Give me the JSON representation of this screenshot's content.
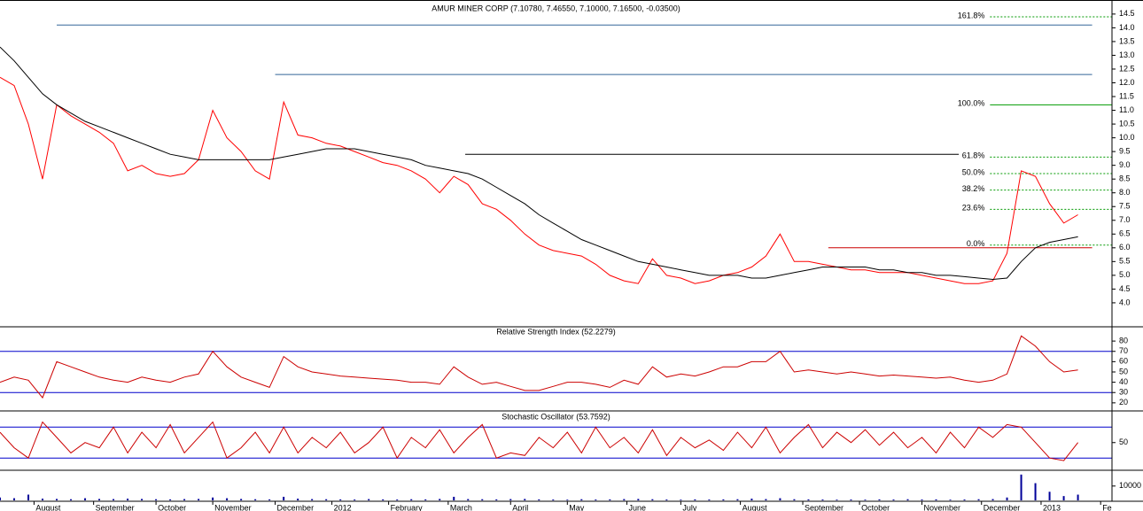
{
  "chart_data": [
    {
      "type": "line",
      "title": "AMUR MINER CORP (7.10780, 7.46550, 7.10000, 7.16500, -0.03500)",
      "x": [
        0,
        5,
        10,
        15,
        20,
        25,
        30,
        35,
        40,
        45,
        50,
        55,
        60,
        65,
        70,
        75,
        80,
        85,
        90,
        95,
        100,
        105,
        110,
        115,
        120,
        125,
        130,
        135,
        140,
        145,
        150,
        155,
        160,
        165,
        170,
        175,
        180,
        185,
        190,
        195,
        200,
        205,
        210,
        215,
        220,
        225,
        230,
        235,
        240,
        245,
        250,
        255,
        260,
        265,
        270,
        275,
        280,
        285,
        290,
        295,
        300,
        305,
        310,
        315,
        320,
        325,
        330,
        335,
        340,
        345,
        350,
        355,
        360,
        365,
        370,
        375,
        380
      ],
      "xlim": [
        0,
        392
      ],
      "ylim": [
        3.16,
        14.85
      ],
      "yticks": [
        {
          "value": 4,
          "label": "4.0"
        },
        4.5,
        {
          "value": 5,
          "label": "5.0"
        },
        5.5,
        {
          "value": 6,
          "label": "6.0"
        },
        6.5,
        {
          "value": 7,
          "label": "7.0"
        },
        7.5,
        {
          "value": 8,
          "label": "8.0"
        },
        8.5,
        {
          "value": 9,
          "label": "9.0"
        },
        9.5,
        {
          "value": 10,
          "label": "10.0"
        },
        10.5,
        {
          "value": 11,
          "label": "11.0"
        },
        11.5,
        {
          "value": 12,
          "label": "12.0"
        },
        12.5,
        {
          "value": 13,
          "label": "13.0"
        },
        13.5,
        {
          "value": 14,
          "label": "14.0"
        },
        14.5
      ],
      "series": [
        {
          "name": "price",
          "color": "#ff0000",
          "values": [
            12.2,
            11.9,
            10.5,
            8.5,
            11.2,
            10.8,
            10.5,
            10.2,
            9.8,
            8.8,
            9.0,
            8.7,
            8.6,
            8.7,
            9.2,
            11.0,
            10.0,
            9.5,
            8.8,
            8.5,
            11.3,
            10.1,
            10.0,
            9.8,
            9.7,
            9.5,
            9.3,
            9.1,
            9.0,
            8.8,
            8.5,
            8.0,
            8.6,
            8.3,
            7.6,
            7.4,
            7.0,
            6.5,
            6.1,
            5.9,
            5.8,
            5.7,
            5.4,
            5.0,
            4.8,
            4.7,
            5.6,
            5.0,
            4.9,
            4.7,
            4.8,
            5.0,
            5.1,
            5.3,
            5.7,
            6.5,
            5.5,
            5.5,
            5.4,
            5.3,
            5.2,
            5.2,
            5.1,
            5.1,
            5.1,
            5.0,
            4.9,
            4.8,
            4.7,
            4.7,
            4.8,
            5.8,
            8.8,
            8.6,
            7.6,
            6.9,
            7.2
          ]
        },
        {
          "name": "moving-average",
          "color": "#000000",
          "values": [
            13.3,
            12.8,
            12.2,
            11.6,
            11.2,
            10.9,
            10.6,
            10.4,
            10.2,
            10.0,
            9.8,
            9.6,
            9.4,
            9.3,
            9.2,
            9.2,
            9.2,
            9.2,
            9.2,
            9.2,
            9.3,
            9.4,
            9.5,
            9.6,
            9.6,
            9.6,
            9.5,
            9.4,
            9.3,
            9.2,
            9.0,
            8.9,
            8.8,
            8.7,
            8.5,
            8.2,
            7.9,
            7.6,
            7.2,
            6.9,
            6.6,
            6.3,
            6.1,
            5.9,
            5.7,
            5.5,
            5.4,
            5.3,
            5.2,
            5.1,
            5.0,
            5.0,
            5.0,
            4.9,
            4.9,
            5.0,
            5.1,
            5.2,
            5.3,
            5.3,
            5.3,
            5.3,
            5.2,
            5.2,
            5.1,
            5.1,
            5.0,
            5.0,
            4.95,
            4.9,
            4.85,
            4.9,
            5.5,
            6.0,
            6.2,
            6.3,
            6.4
          ]
        }
      ],
      "hlines": [
        {
          "value": 14.1,
          "x": [
            20,
            385
          ],
          "color": "#336699"
        },
        {
          "value": 12.3,
          "x": [
            97,
            385
          ],
          "color": "#336699"
        },
        {
          "value": 9.4,
          "x": [
            164,
            338
          ],
          "color": "#000000"
        },
        {
          "value": 6.0,
          "x": [
            292,
            385
          ],
          "color": "#cc0000"
        }
      ],
      "fib_x": [
        349,
        392
      ],
      "fib_color": "#009900",
      "fib_levels": [
        {
          "value": 14.4,
          "label": "161.8%"
        },
        {
          "value": 11.2,
          "label": "100.0%"
        },
        {
          "value": 9.3,
          "label": "61.8%"
        },
        {
          "value": 8.7,
          "label": "50.0%"
        },
        {
          "value": 8.1,
          "label": "38.2%"
        },
        {
          "value": 7.4,
          "label": "23.6%"
        },
        {
          "value": 6.1,
          "label": "0.0%"
        }
      ]
    },
    {
      "type": "line",
      "title": "Relative Strength Index (52.2279)",
      "x": [
        0,
        5,
        10,
        15,
        20,
        25,
        30,
        35,
        40,
        45,
        50,
        55,
        60,
        65,
        70,
        75,
        80,
        85,
        90,
        95,
        100,
        105,
        110,
        115,
        120,
        125,
        130,
        135,
        140,
        145,
        150,
        155,
        160,
        165,
        170,
        175,
        180,
        185,
        190,
        195,
        200,
        205,
        210,
        215,
        220,
        225,
        230,
        235,
        240,
        245,
        250,
        255,
        260,
        265,
        270,
        275,
        280,
        285,
        290,
        295,
        300,
        305,
        310,
        315,
        320,
        325,
        330,
        335,
        340,
        345,
        350,
        355,
        360,
        365,
        370,
        375,
        380
      ],
      "xlim": [
        0,
        392
      ],
      "ylim": [
        13,
        93
      ],
      "yticks": [
        20,
        30,
        40,
        50,
        60,
        70,
        80
      ],
      "levels": [
        70,
        30
      ],
      "level_color": "#0000cc",
      "series": [
        {
          "name": "rsi",
          "color": "#cc0000",
          "values": [
            40,
            45,
            42,
            25,
            60,
            55,
            50,
            45,
            42,
            40,
            45,
            42,
            40,
            45,
            48,
            70,
            55,
            45,
            40,
            35,
            65,
            55,
            50,
            48,
            46,
            45,
            44,
            43,
            42,
            40,
            40,
            38,
            55,
            45,
            38,
            40,
            36,
            32,
            32,
            36,
            40,
            40,
            38,
            35,
            42,
            38,
            55,
            45,
            48,
            46,
            50,
            55,
            55,
            60,
            60,
            70,
            50,
            52,
            50,
            48,
            50,
            48,
            46,
            47,
            46,
            45,
            44,
            45,
            42,
            40,
            42,
            48,
            85,
            75,
            60,
            50,
            52
          ]
        }
      ]
    },
    {
      "type": "line",
      "title": "Stochastic Oscillator (53.7592)",
      "x": [
        0,
        5,
        10,
        15,
        20,
        25,
        30,
        35,
        40,
        45,
        50,
        55,
        60,
        65,
        70,
        75,
        80,
        85,
        90,
        95,
        100,
        105,
        110,
        115,
        120,
        125,
        130,
        135,
        140,
        145,
        150,
        155,
        160,
        165,
        170,
        175,
        180,
        185,
        190,
        195,
        200,
        205,
        210,
        215,
        220,
        225,
        230,
        235,
        240,
        245,
        250,
        255,
        260,
        265,
        270,
        275,
        280,
        285,
        290,
        295,
        300,
        305,
        310,
        315,
        320,
        325,
        330,
        335,
        340,
        345,
        350,
        355,
        360,
        365,
        370,
        375,
        380
      ],
      "xlim": [
        0,
        392
      ],
      "ylim": [
        -2,
        108
      ],
      "yticks": [
        50
      ],
      "levels": [
        80,
        20
      ],
      "level_color": "#0000cc",
      "series": [
        {
          "name": "stochastic",
          "color": "#cc0000",
          "values": [
            70,
            40,
            20,
            90,
            60,
            30,
            50,
            40,
            80,
            30,
            70,
            40,
            85,
            30,
            60,
            90,
            20,
            40,
            70,
            30,
            80,
            30,
            60,
            40,
            70,
            30,
            50,
            80,
            20,
            60,
            40,
            75,
            30,
            60,
            85,
            20,
            30,
            25,
            60,
            40,
            70,
            30,
            80,
            40,
            60,
            30,
            75,
            25,
            60,
            40,
            55,
            35,
            70,
            40,
            80,
            30,
            60,
            85,
            40,
            70,
            50,
            75,
            45,
            70,
            40,
            60,
            30,
            70,
            40,
            80,
            60,
            85,
            80,
            50,
            20,
            15,
            50
          ]
        }
      ]
    },
    {
      "type": "bar",
      "x": [
        0,
        5,
        10,
        15,
        20,
        25,
        30,
        35,
        40,
        45,
        50,
        55,
        60,
        65,
        70,
        75,
        80,
        85,
        90,
        95,
        100,
        105,
        110,
        115,
        120,
        125,
        130,
        135,
        140,
        145,
        150,
        155,
        160,
        165,
        170,
        175,
        180,
        185,
        190,
        195,
        200,
        205,
        210,
        215,
        220,
        225,
        230,
        235,
        240,
        245,
        250,
        255,
        260,
        265,
        270,
        275,
        280,
        285,
        290,
        295,
        300,
        305,
        310,
        315,
        320,
        325,
        330,
        335,
        340,
        345,
        350,
        355,
        360,
        365,
        370,
        375,
        380
      ],
      "xlim": [
        0,
        392
      ],
      "ylim": [
        0,
        21000
      ],
      "yticks": [
        10000
      ],
      "color": "#000099",
      "values": [
        2000,
        1500,
        4000,
        1200,
        1000,
        800,
        1500,
        1000,
        900,
        1200,
        1000,
        800,
        700,
        900,
        1000,
        2000,
        1500,
        1000,
        800,
        700,
        2500,
        1200,
        900,
        800,
        700,
        600,
        900,
        700,
        600,
        800,
        700,
        1000,
        2500,
        900,
        800,
        700,
        900,
        1000,
        700,
        600,
        500,
        800,
        600,
        700,
        900,
        1000,
        800,
        600,
        500,
        700,
        600,
        700,
        800,
        1200,
        900,
        1500,
        800,
        700,
        600,
        500,
        600,
        500,
        700,
        600,
        800,
        600,
        700,
        500,
        600,
        800,
        900,
        2000,
        18000,
        12000,
        6000,
        3000,
        4000
      ],
      "xticks": [
        {
          "value": 12,
          "label": "August"
        },
        {
          "value": 33,
          "label": "September"
        },
        {
          "value": 55,
          "label": "October"
        },
        {
          "value": 75,
          "label": "November"
        },
        {
          "value": 97,
          "label": "December"
        },
        {
          "value": 117,
          "label": "2012"
        },
        {
          "value": 137,
          "label": "February"
        },
        {
          "value": 158,
          "label": "March"
        },
        {
          "value": 180,
          "label": "April"
        },
        {
          "value": 200,
          "label": "May"
        },
        {
          "value": 221,
          "label": "June"
        },
        {
          "value": 240,
          "label": "July"
        },
        {
          "value": 261,
          "label": "August"
        },
        {
          "value": 283,
          "label": "September"
        },
        {
          "value": 303,
          "label": "October"
        },
        {
          "value": 325,
          "label": "November"
        },
        {
          "value": 346,
          "label": "December"
        },
        {
          "value": 367,
          "label": "2013"
        },
        {
          "value": 388,
          "label": "Fe"
        }
      ]
    }
  ]
}
